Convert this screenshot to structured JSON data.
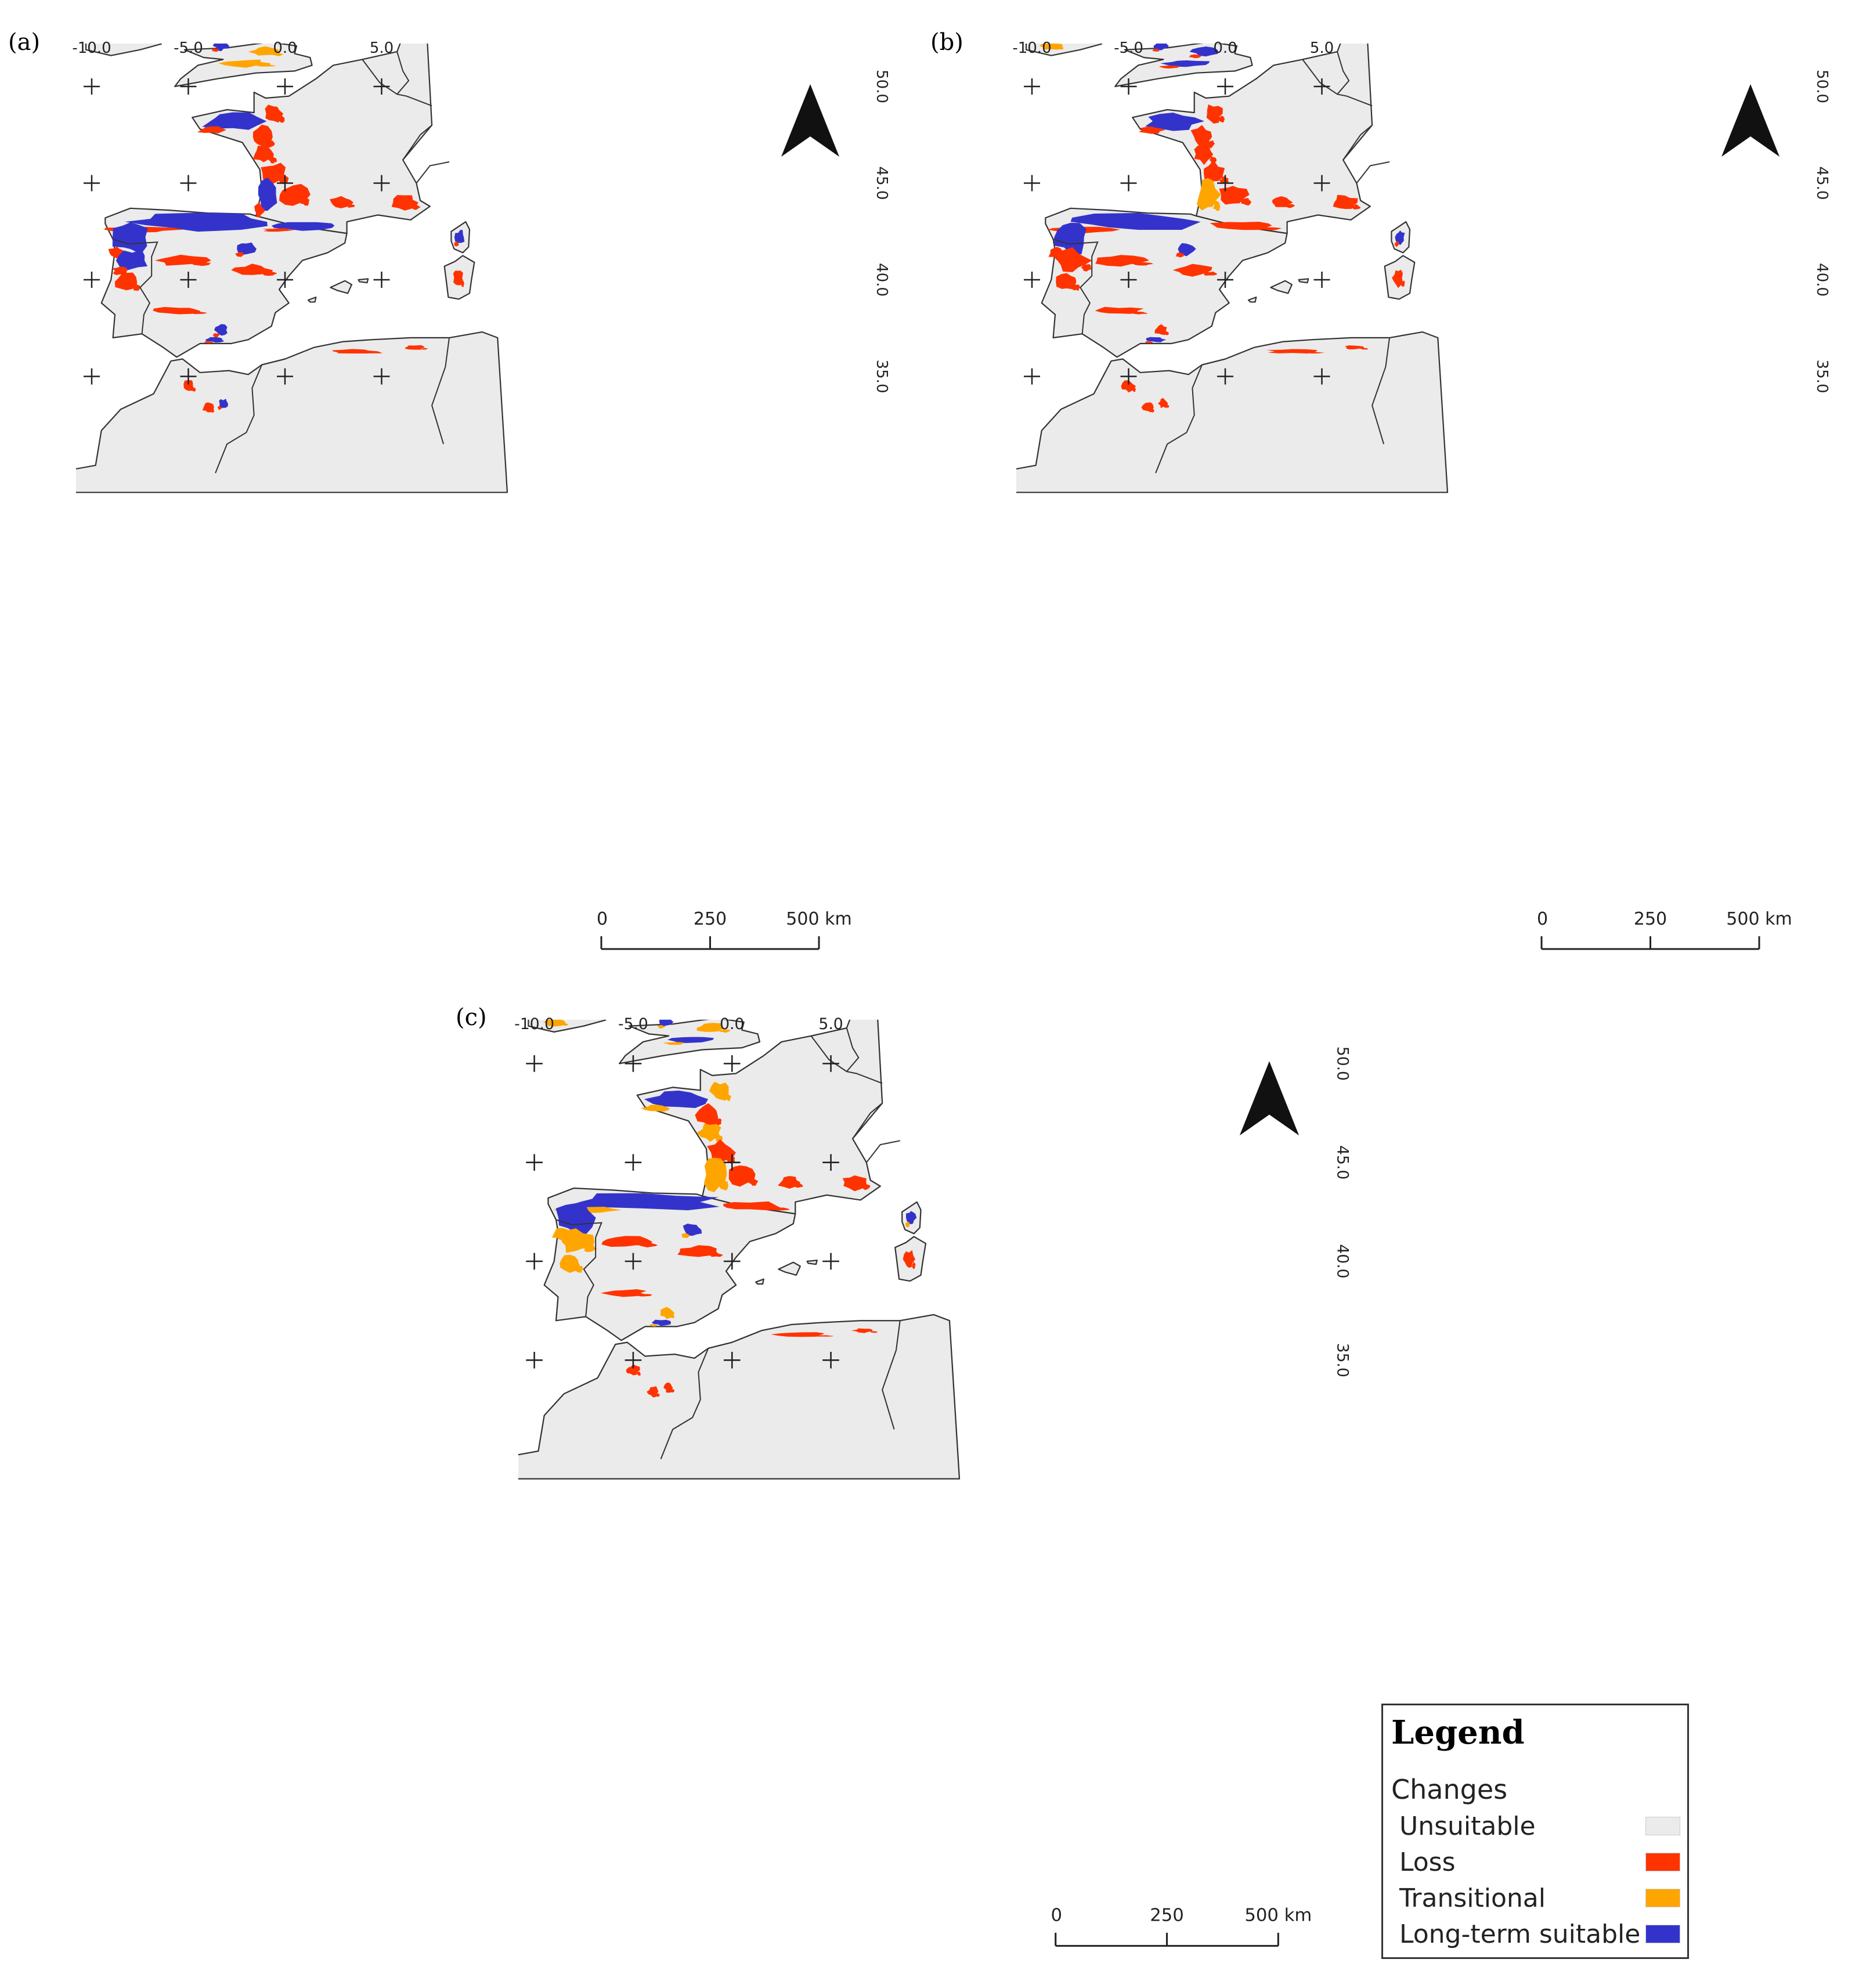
{
  "colors": {
    "unsuitable": "#ebebeb",
    "loss": "#ff3300",
    "transitional": "#ffa500",
    "long_term_suitable": "#3333cc",
    "sea": "#ffffff",
    "border": "#333333"
  },
  "panels": [
    {
      "id": "a",
      "label": "(a)",
      "lon_ticks": [
        "-10.0",
        "-5.0",
        "0.0",
        "5.0"
      ],
      "lat_ticks": [
        "50.0",
        "45.0",
        "40.0",
        "35.0"
      ],
      "scale_labels": [
        "0",
        "250",
        "500 km"
      ]
    },
    {
      "id": "b",
      "label": "(b)",
      "lon_ticks": [
        "-10.0",
        "-5.0",
        "0.0",
        "5.0"
      ],
      "lat_ticks": [
        "50.0",
        "45.0",
        "40.0",
        "35.0"
      ],
      "scale_labels": [
        "0",
        "250",
        "500 km"
      ]
    },
    {
      "id": "c",
      "label": "(c)",
      "lon_ticks": [
        "-10.0",
        "-5.0",
        "0.0",
        "5.0"
      ],
      "lat_ticks": [
        "50.0",
        "45.0",
        "40.0",
        "35.0"
      ],
      "scale_labels": [
        "0",
        "250",
        "500 km"
      ]
    }
  ],
  "legend": {
    "title": "Legend",
    "subtitle": "Changes",
    "items": [
      {
        "label": "Unsuitable",
        "color": "#ebebeb"
      },
      {
        "label": "Loss",
        "color": "#ff3300"
      },
      {
        "label": "Transitional",
        "color": "#ffa500"
      },
      {
        "label": "Long-term suitable",
        "color": "#3333cc"
      }
    ]
  }
}
